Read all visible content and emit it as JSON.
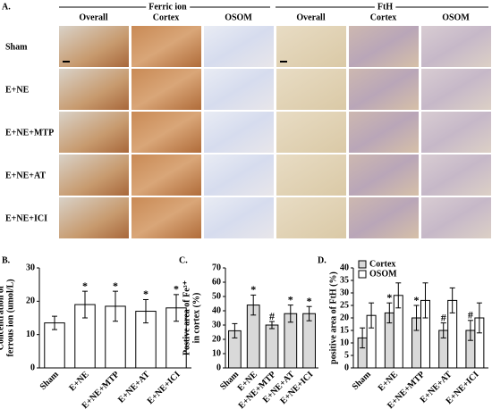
{
  "panel_a": {
    "label": "A.",
    "groups": [
      {
        "name": "Ferric ion",
        "columns": [
          "Overall",
          "Cortex",
          "OSOM"
        ]
      },
      {
        "name": "FtH",
        "columns": [
          "Overall",
          "Cortex",
          "OSOM"
        ]
      }
    ],
    "rows": [
      "Sham",
      "E+NE",
      "E+NE+MTP",
      "E+NE+AT",
      "E+NE+ICI"
    ]
  },
  "chart_data": [
    {
      "type": "bar",
      "panel": "B.",
      "ylabel": [
        "Concentration of",
        "ferrous ion (umol/L)"
      ],
      "categories": [
        "Sham",
        "E+NE",
        "E+NE+MTP",
        "E+NE+AT",
        "E+NE+ICI"
      ],
      "values": [
        13.5,
        19,
        18.5,
        17,
        18
      ],
      "errors": [
        2,
        4,
        4.5,
        3.5,
        4
      ],
      "significance": [
        null,
        "*",
        "*",
        "*",
        "*"
      ],
      "color": "#ffffff",
      "ylim": [
        0,
        30
      ],
      "yticks": [
        0,
        10,
        20,
        30
      ]
    },
    {
      "type": "bar",
      "panel": "C.",
      "ylabel": [
        "Postive area of Fe³⁺",
        "in cortex (%)"
      ],
      "categories": [
        "Sham",
        "E+NE",
        "E+NE+MTP",
        "E+NE+AT",
        "E+NE+ICI"
      ],
      "values": [
        26,
        44,
        30,
        38,
        38
      ],
      "errors": [
        5,
        7,
        2.5,
        6,
        5
      ],
      "significance": [
        null,
        "*",
        "#",
        "*",
        "*"
      ],
      "color": "#d9d9d9",
      "ylim": [
        0,
        70
      ],
      "yticks": [
        0,
        10,
        20,
        30,
        40,
        50,
        60,
        70
      ]
    },
    {
      "type": "bar",
      "panel": "D.",
      "ylabel": [
        "positive area of FtH (%)"
      ],
      "categories": [
        "Sham",
        "E+NE",
        "E+NE+MTP",
        "E+NE+AT",
        "E+NE+ICI"
      ],
      "series": [
        {
          "name": "Cortex",
          "color": "#d9d9d9",
          "values": [
            12,
            22,
            20,
            15,
            15
          ],
          "errors": [
            4,
            4,
            5,
            3,
            4
          ],
          "significance": [
            null,
            "*",
            "*",
            "#",
            "#"
          ]
        },
        {
          "name": "OSOM",
          "color": "#ffffff",
          "values": [
            21,
            29,
            27,
            27,
            20
          ],
          "errors": [
            5,
            5,
            7,
            5,
            6
          ]
        }
      ],
      "legend": "upper left",
      "ylim": [
        0,
        40
      ],
      "yticks": [
        0,
        5,
        10,
        15,
        20,
        25,
        30,
        35,
        40
      ]
    }
  ]
}
